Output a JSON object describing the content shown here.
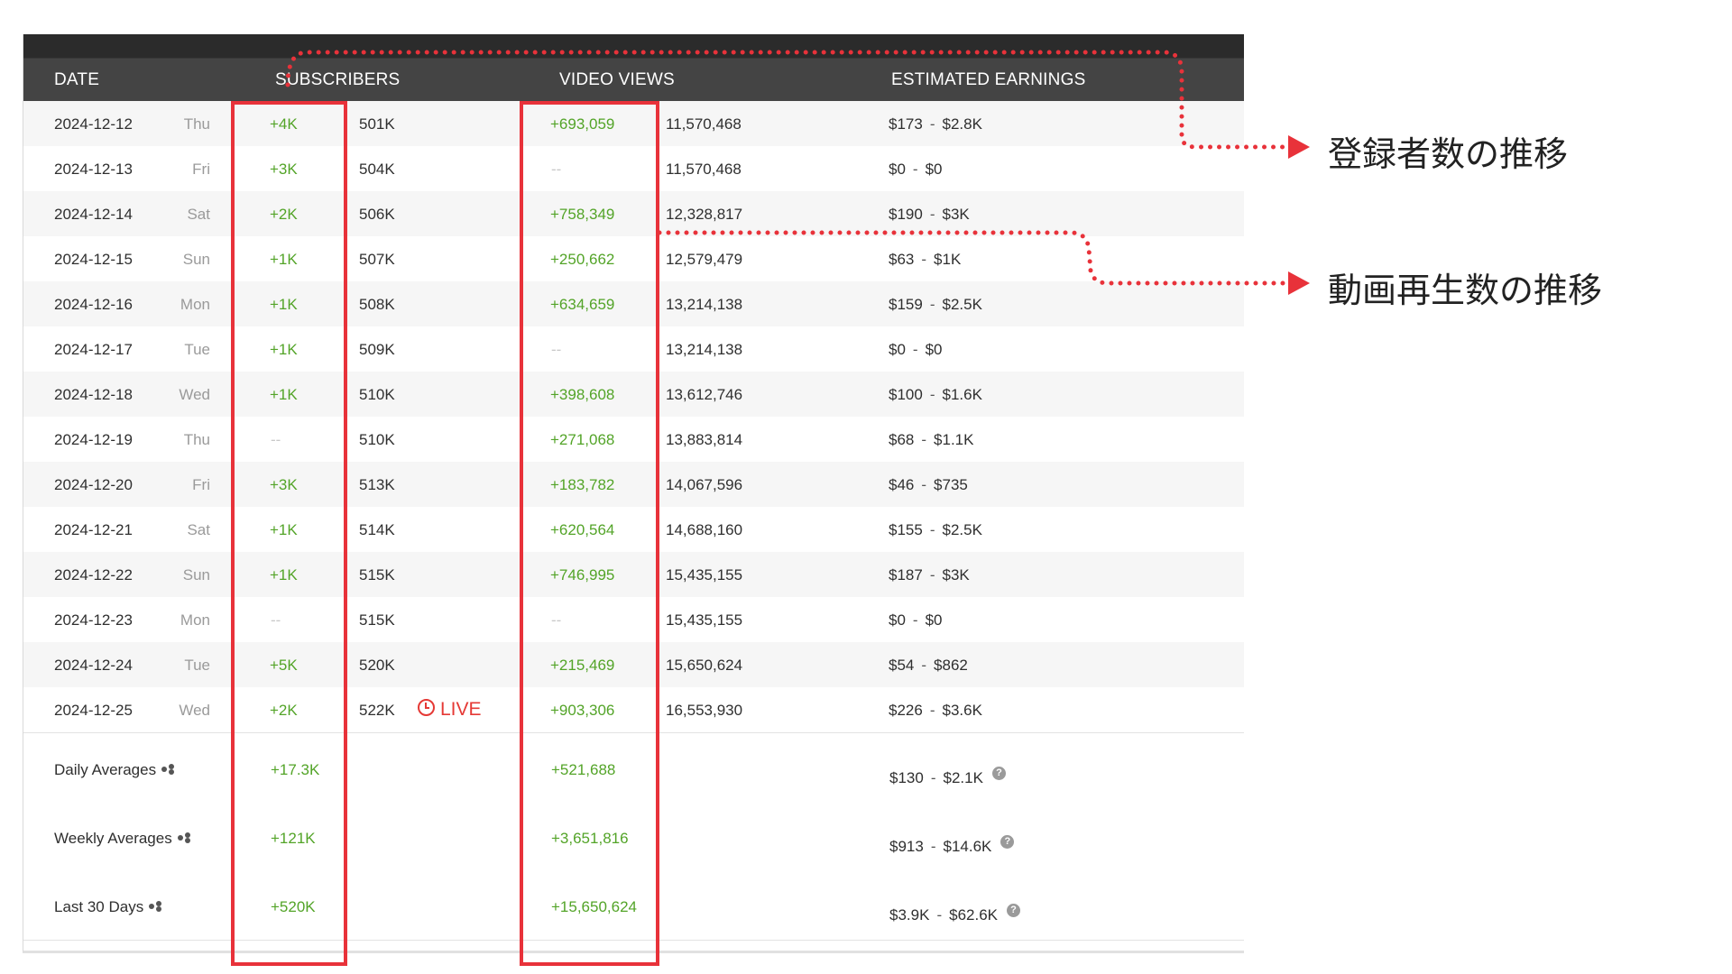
{
  "headers": {
    "date": "DATE",
    "subscribers": "SUBSCRIBERS",
    "video_views": "VIDEO VIEWS",
    "earnings": "ESTIMATED EARNINGS"
  },
  "rows": [
    {
      "date": "2024-12-12",
      "dow": "Thu",
      "sub_change": "+4K",
      "subs": "501K",
      "view_change": "+693,059",
      "views": "11,570,468",
      "earn_low": "$173",
      "earn_high": "$2.8K"
    },
    {
      "date": "2024-12-13",
      "dow": "Fri",
      "sub_change": "+3K",
      "subs": "504K",
      "view_change": "--",
      "views": "11,570,468",
      "earn_low": "$0",
      "earn_high": "$0"
    },
    {
      "date": "2024-12-14",
      "dow": "Sat",
      "sub_change": "+2K",
      "subs": "506K",
      "view_change": "+758,349",
      "views": "12,328,817",
      "earn_low": "$190",
      "earn_high": "$3K"
    },
    {
      "date": "2024-12-15",
      "dow": "Sun",
      "sub_change": "+1K",
      "subs": "507K",
      "view_change": "+250,662",
      "views": "12,579,479",
      "earn_low": "$63",
      "earn_high": "$1K"
    },
    {
      "date": "2024-12-16",
      "dow": "Mon",
      "sub_change": "+1K",
      "subs": "508K",
      "view_change": "+634,659",
      "views": "13,214,138",
      "earn_low": "$159",
      "earn_high": "$2.5K"
    },
    {
      "date": "2024-12-17",
      "dow": "Tue",
      "sub_change": "+1K",
      "subs": "509K",
      "view_change": "--",
      "views": "13,214,138",
      "earn_low": "$0",
      "earn_high": "$0"
    },
    {
      "date": "2024-12-18",
      "dow": "Wed",
      "sub_change": "+1K",
      "subs": "510K",
      "view_change": "+398,608",
      "views": "13,612,746",
      "earn_low": "$100",
      "earn_high": "$1.6K"
    },
    {
      "date": "2024-12-19",
      "dow": "Thu",
      "sub_change": "--",
      "subs": "510K",
      "view_change": "+271,068",
      "views": "13,883,814",
      "earn_low": "$68",
      "earn_high": "$1.1K"
    },
    {
      "date": "2024-12-20",
      "dow": "Fri",
      "sub_change": "+3K",
      "subs": "513K",
      "view_change": "+183,782",
      "views": "14,067,596",
      "earn_low": "$46",
      "earn_high": "$735"
    },
    {
      "date": "2024-12-21",
      "dow": "Sat",
      "sub_change": "+1K",
      "subs": "514K",
      "view_change": "+620,564",
      "views": "14,688,160",
      "earn_low": "$155",
      "earn_high": "$2.5K"
    },
    {
      "date": "2024-12-22",
      "dow": "Sun",
      "sub_change": "+1K",
      "subs": "515K",
      "view_change": "+746,995",
      "views": "15,435,155",
      "earn_low": "$187",
      "earn_high": "$3K"
    },
    {
      "date": "2024-12-23",
      "dow": "Mon",
      "sub_change": "--",
      "subs": "515K",
      "view_change": "--",
      "views": "15,435,155",
      "earn_low": "$0",
      "earn_high": "$0"
    },
    {
      "date": "2024-12-24",
      "dow": "Tue",
      "sub_change": "+5K",
      "subs": "520K",
      "view_change": "+215,469",
      "views": "15,650,624",
      "earn_low": "$54",
      "earn_high": "$862"
    },
    {
      "date": "2024-12-25",
      "dow": "Wed",
      "sub_change": "+2K",
      "subs": "522K",
      "view_change": "+903,306",
      "views": "16,553,930",
      "earn_low": "$226",
      "earn_high": "$3.6K",
      "live": "LIVE"
    }
  ],
  "summary": [
    {
      "label": "Daily Averages",
      "sub_change": "+17.3K",
      "view_change": "+521,688",
      "earn_low": "$130",
      "earn_high": "$2.1K"
    },
    {
      "label": "Weekly Averages",
      "sub_change": "+121K",
      "view_change": "+3,651,816",
      "earn_low": "$913",
      "earn_high": "$14.6K"
    },
    {
      "label": "Last 30 Days",
      "sub_change": "+520K",
      "view_change": "+15,650,624",
      "earn_low": "$3.9K",
      "earn_high": "$62.6K"
    }
  ],
  "annotations": {
    "subscribers_trend": "登録者数の推移",
    "views_trend": "動画再生数の推移"
  },
  "colors": {
    "positive": "#53a428",
    "highlight": "#e8323a",
    "header_bg": "#444444"
  },
  "icons": {
    "share": "share-icon",
    "help": "question-icon",
    "live": "clock-icon"
  }
}
